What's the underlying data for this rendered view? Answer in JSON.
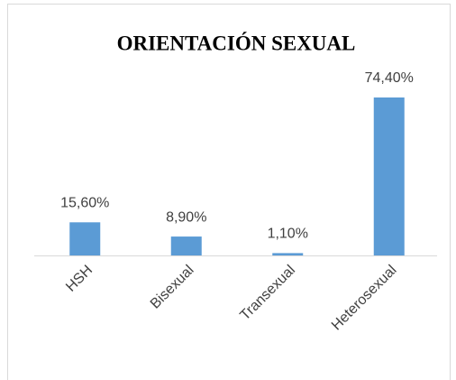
{
  "chart_data": {
    "type": "bar",
    "title": "ORIENTACIÓN SEXUAL",
    "categories": [
      "HSH",
      "Bisexual",
      "Transexual",
      "Heterosexual"
    ],
    "values": [
      15.6,
      8.9,
      1.1,
      74.4
    ],
    "value_labels": [
      "15,60%",
      "8,90%",
      "1,10%",
      "74,40%"
    ],
    "color": "#5b9bd5"
  }
}
